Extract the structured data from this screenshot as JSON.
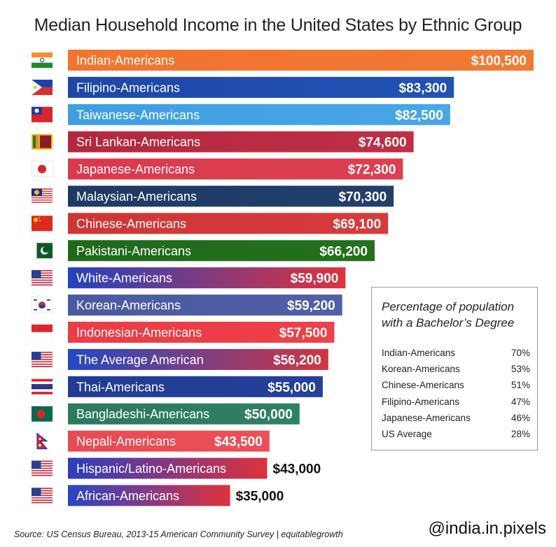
{
  "title": "Median Household Income in the United States  by Ethnic Group",
  "chart_data": {
    "type": "bar",
    "orientation": "horizontal",
    "xlim": [
      0,
      100500
    ],
    "categories": [
      "Indian-Americans",
      "Filipino-Americans",
      "Taiwanese-Americans",
      "Sri Lankan-Americans",
      "Japanese-Americans",
      "Malaysian-Americans",
      "Chinese-Americans",
      "Pakistani-Americans",
      "White-Americans",
      "Korean-Americans",
      "Indonesian-Americans",
      "The Average American",
      "Thai-Americans",
      "Bangladeshi-Americans",
      "Nepali-Americans",
      "Hispanic/Latino-Americans",
      "African-Americans"
    ],
    "values": [
      100500,
      83300,
      82500,
      74600,
      72300,
      70300,
      69100,
      66200,
      59900,
      59200,
      57500,
      56200,
      55000,
      50000,
      43500,
      43000,
      35000
    ],
    "value_labels": [
      "$100,500",
      "$83,300",
      "$82,500",
      "$74,600",
      "$72,300",
      "$70,300",
      "$69,100",
      "$66,200",
      "$59,900",
      "$59,200",
      "$57,500",
      "$56,200",
      "$55,000",
      "$50,000",
      "$43,500",
      "$43,000",
      "$35,000"
    ],
    "bar_colors": [
      [
        "#f0752f",
        "#f27a33"
      ],
      [
        "#1e47a8",
        "#2252b6"
      ],
      [
        "#3f9ee0",
        "#4aa6e6"
      ],
      [
        "#b3283d",
        "#bf2f45"
      ],
      [
        "#d93a4e",
        "#dd3f52"
      ],
      [
        "#1d3a62",
        "#223f6a"
      ],
      [
        "#d03535",
        "#d63b3b"
      ],
      [
        "#1f6a1a",
        "#23701e"
      ],
      [
        "#2342c0",
        "#e0323c"
      ],
      [
        "#4a5aa0",
        "#5160a6"
      ],
      [
        "#ec3b45",
        "#ee4048"
      ],
      [
        "#2348c4",
        "#d23540"
      ],
      [
        "#223c92",
        "#25409a"
      ],
      [
        "#2c7a5c",
        "#308063"
      ],
      [
        "#e84a52",
        "#ea5058"
      ],
      [
        "#2a3dc0",
        "#e0323c"
      ],
      [
        "#2a44c8",
        "#e0323c"
      ]
    ],
    "value_inside": [
      true,
      true,
      true,
      true,
      true,
      true,
      true,
      true,
      true,
      true,
      true,
      true,
      true,
      true,
      true,
      false,
      false
    ],
    "flags": [
      "india-flag",
      "philippines-flag",
      "taiwan-flag",
      "sri-lanka-flag",
      "japan-flag",
      "malaysia-flag",
      "china-flag",
      "pakistan-flag",
      "usa-flag",
      "south-korea-flag",
      "indonesia-flag",
      "usa-flag",
      "thailand-flag",
      "bangladesh-flag",
      "nepal-flag",
      "usa-flag",
      "usa-flag"
    ]
  },
  "inset": {
    "title": "Percentage of population with a Bachelor’s Degree",
    "rows": [
      {
        "label": "Indian-Americans",
        "value": "70%"
      },
      {
        "label": "Korean-Americans",
        "value": "53%"
      },
      {
        "label": "Chinese-Americans",
        "value": "51%"
      },
      {
        "label": "Filipino-Americans",
        "value": "47%"
      },
      {
        "label": "Japanese-Americans",
        "value": "46%"
      },
      {
        "label": "US Average",
        "value": "28%"
      }
    ]
  },
  "source": "Source: US Census Bureau, 2013-15 American Community Survey | equitablegrowth",
  "handle": "@india.in.pixels"
}
